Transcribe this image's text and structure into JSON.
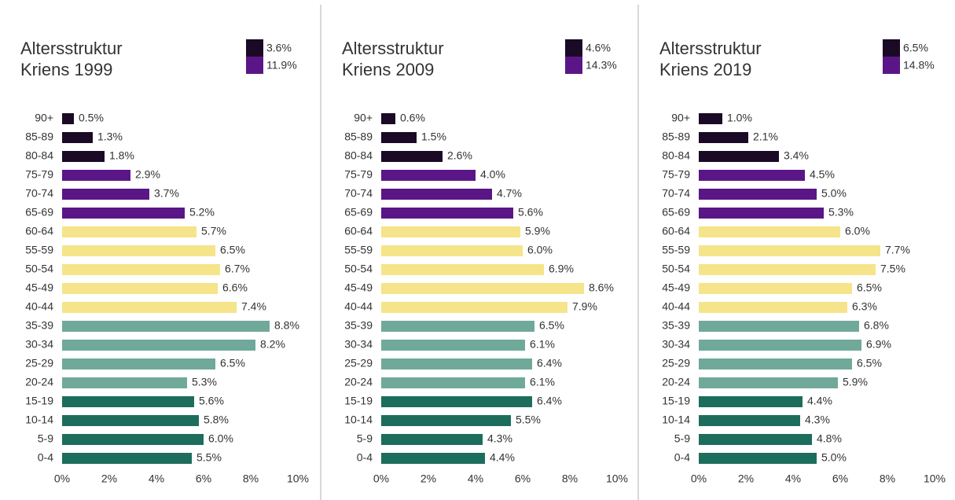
{
  "chart_data": [
    {
      "type": "bar",
      "title": "Altersstruktur Kriens 1999",
      "legend": [
        {
          "color": "#1a0a26",
          "label": "3.6%"
        },
        {
          "color": "#5a1687",
          "label": "11.9%"
        }
      ],
      "categories": [
        "90+",
        "85-89",
        "80-84",
        "75-79",
        "70-74",
        "65-69",
        "60-64",
        "55-59",
        "50-54",
        "45-49",
        "40-44",
        "35-39",
        "30-34",
        "25-29",
        "20-24",
        "15-19",
        "10-14",
        "5-9",
        "0-4"
      ],
      "values": [
        0.5,
        1.3,
        1.8,
        2.9,
        3.7,
        5.2,
        5.7,
        6.5,
        6.7,
        6.6,
        7.4,
        8.8,
        8.2,
        6.5,
        5.3,
        5.6,
        5.8,
        6.0,
        5.5
      ],
      "value_labels": [
        "0.5%",
        "1.3%",
        "1.8%",
        "2.9%",
        "3.7%",
        "5.2%",
        "5.7%",
        "6.5%",
        "6.7%",
        "6.6%",
        "7.4%",
        "8.8%",
        "8.2%",
        "6.5%",
        "5.3%",
        "5.6%",
        "5.8%",
        "6.0%",
        "5.5%"
      ],
      "colors": [
        "#1a0a26",
        "#1a0a26",
        "#1a0a26",
        "#5a1687",
        "#5a1687",
        "#5a1687",
        "#f5e48a",
        "#f5e48a",
        "#f5e48a",
        "#f5e48a",
        "#f5e48a",
        "#70a99a",
        "#70a99a",
        "#70a99a",
        "#70a99a",
        "#1d6d5c",
        "#1d6d5c",
        "#1d6d5c",
        "#1d6d5c"
      ],
      "xlim": [
        0,
        10
      ],
      "xticks": [
        {
          "value": 0,
          "label": "0%"
        },
        {
          "value": 2,
          "label": "2%"
        },
        {
          "value": 4,
          "label": "4%"
        },
        {
          "value": 6,
          "label": "6%"
        },
        {
          "value": 8,
          "label": "8%"
        },
        {
          "value": 10,
          "label": "10%"
        }
      ]
    },
    {
      "type": "bar",
      "title": "Altersstruktur Kriens 2009",
      "legend": [
        {
          "color": "#1a0a26",
          "label": "4.6%"
        },
        {
          "color": "#5a1687",
          "label": "14.3%"
        }
      ],
      "categories": [
        "90+",
        "85-89",
        "80-84",
        "75-79",
        "70-74",
        "65-69",
        "60-64",
        "55-59",
        "50-54",
        "45-49",
        "40-44",
        "35-39",
        "30-34",
        "25-29",
        "20-24",
        "15-19",
        "10-14",
        "5-9",
        "0-4"
      ],
      "values": [
        0.6,
        1.5,
        2.6,
        4.0,
        4.7,
        5.6,
        5.9,
        6.0,
        6.9,
        8.6,
        7.9,
        6.5,
        6.1,
        6.4,
        6.1,
        6.4,
        5.5,
        4.3,
        4.4
      ],
      "value_labels": [
        "0.6%",
        "1.5%",
        "2.6%",
        "4.0%",
        "4.7%",
        "5.6%",
        "5.9%",
        "6.0%",
        "6.9%",
        "8.6%",
        "7.9%",
        "6.5%",
        "6.1%",
        "6.4%",
        "6.1%",
        "6.4%",
        "5.5%",
        "4.3%",
        "4.4%"
      ],
      "colors": [
        "#1a0a26",
        "#1a0a26",
        "#1a0a26",
        "#5a1687",
        "#5a1687",
        "#5a1687",
        "#f5e48a",
        "#f5e48a",
        "#f5e48a",
        "#f5e48a",
        "#f5e48a",
        "#70a99a",
        "#70a99a",
        "#70a99a",
        "#70a99a",
        "#1d6d5c",
        "#1d6d5c",
        "#1d6d5c",
        "#1d6d5c"
      ],
      "xlim": [
        0,
        10
      ],
      "xticks": [
        {
          "value": 0,
          "label": "0%"
        },
        {
          "value": 2,
          "label": "2%"
        },
        {
          "value": 4,
          "label": "4%"
        },
        {
          "value": 6,
          "label": "6%"
        },
        {
          "value": 8,
          "label": "8%"
        },
        {
          "value": 10,
          "label": "10%"
        }
      ]
    },
    {
      "type": "bar",
      "title": "Altersstruktur Kriens 2019",
      "legend": [
        {
          "color": "#1a0a26",
          "label": "6.5%"
        },
        {
          "color": "#5a1687",
          "label": "14.8%"
        }
      ],
      "categories": [
        "90+",
        "85-89",
        "80-84",
        "75-79",
        "70-74",
        "65-69",
        "60-64",
        "55-59",
        "50-54",
        "45-49",
        "40-44",
        "35-39",
        "30-34",
        "25-29",
        "20-24",
        "15-19",
        "10-14",
        "5-9",
        "0-4"
      ],
      "values": [
        1.0,
        2.1,
        3.4,
        4.5,
        5.0,
        5.3,
        6.0,
        7.7,
        7.5,
        6.5,
        6.3,
        6.8,
        6.9,
        6.5,
        5.9,
        4.4,
        4.3,
        4.8,
        5.0
      ],
      "value_labels": [
        "1.0%",
        "2.1%",
        "3.4%",
        "4.5%",
        "5.0%",
        "5.3%",
        "6.0%",
        "7.7%",
        "7.5%",
        "6.5%",
        "6.3%",
        "6.8%",
        "6.9%",
        "6.5%",
        "5.9%",
        "4.4%",
        "4.3%",
        "4.8%",
        "5.0%"
      ],
      "colors": [
        "#1a0a26",
        "#1a0a26",
        "#1a0a26",
        "#5a1687",
        "#5a1687",
        "#5a1687",
        "#f5e48a",
        "#f5e48a",
        "#f5e48a",
        "#f5e48a",
        "#f5e48a",
        "#70a99a",
        "#70a99a",
        "#70a99a",
        "#70a99a",
        "#1d6d5c",
        "#1d6d5c",
        "#1d6d5c",
        "#1d6d5c"
      ],
      "xlim": [
        0,
        10
      ],
      "xticks": [
        {
          "value": 0,
          "label": "0%"
        },
        {
          "value": 2,
          "label": "2%"
        },
        {
          "value": 4,
          "label": "4%"
        },
        {
          "value": 6,
          "label": "6%"
        },
        {
          "value": 8,
          "label": "8%"
        },
        {
          "value": 10,
          "label": "10%"
        }
      ]
    }
  ]
}
